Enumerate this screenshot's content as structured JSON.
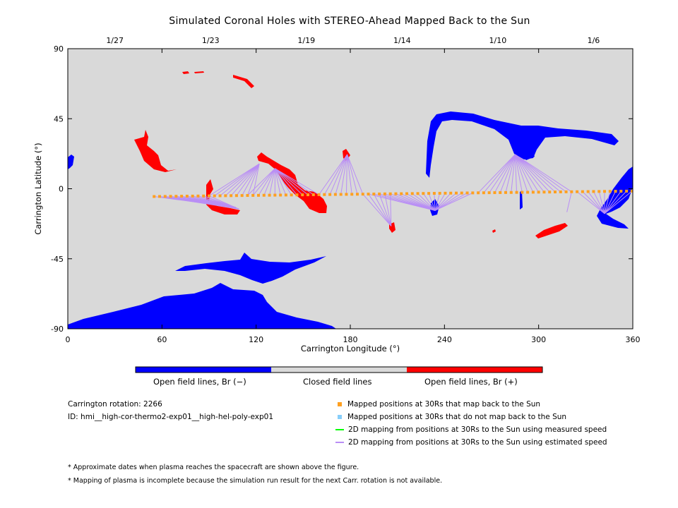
{
  "title": "Simulated Coronal Holes with STEREO-Ahead Mapped Back to the Sun",
  "chart_data": {
    "type": "map",
    "title": "Simulated Coronal Holes with STEREO-Ahead Mapped Back to the Sun",
    "xlabel": "Carrington Longitude (°)",
    "ylabel": "Carrington Latitude (°)",
    "xlim": [
      0,
      360
    ],
    "ylim": [
      -90,
      90
    ],
    "xticks": [
      0,
      60,
      120,
      180,
      240,
      300,
      360
    ],
    "yticks": [
      90,
      45,
      0,
      -45,
      -90
    ],
    "top_axis": {
      "tick_labels": [
        "1/27",
        "1/23",
        "1/19",
        "1/14",
        "1/10",
        "1/6"
      ],
      "tick_longitudes": [
        30,
        91,
        152,
        213,
        274,
        335
      ]
    },
    "colors": {
      "background": "#d9d9d9",
      "negative": "#0000ff",
      "positive": "#ff0000",
      "mapped": "#ffa020",
      "estimated": "#b98ef5",
      "measured": "#00ff00",
      "unmapped": "#87cefa"
    },
    "mapped_points": {
      "lon_start": 55,
      "lon_end": 360,
      "step": 3.5,
      "lat_start": -5,
      "lat_end": -1.5
    },
    "footpoints": [
      {
        "lon": 107,
        "lat": -12,
        "from": [
          55,
          88
        ]
      },
      {
        "lon": 109,
        "lat": -13,
        "from": [
          58,
          91
        ]
      },
      {
        "lon": 122,
        "lat": 16,
        "from": [
          88,
          118
        ]
      },
      {
        "lon": 132,
        "lat": 13,
        "from": [
          112,
          160
        ]
      },
      {
        "lon": 178,
        "lat": 22,
        "from": [
          160,
          190
        ]
      },
      {
        "lon": 206,
        "lat": -24,
        "from": [
          188,
          206
        ]
      },
      {
        "lon": 234,
        "lat": -14,
        "from": [
          190,
          260
        ]
      },
      {
        "lon": 285,
        "lat": 22,
        "from": [
          260,
          322
        ]
      },
      {
        "lon": 318,
        "lat": -15,
        "from": [
          318,
          322
        ]
      },
      {
        "lon": 342,
        "lat": -16,
        "from": [
          322,
          360
        ]
      }
    ],
    "colorbar": [
      "Open field lines, Br (−)",
      "Closed field lines",
      "Open field lines, Br (+)"
    ]
  },
  "info": {
    "rotation": "Carrington rotation: 2266",
    "id": "ID: hmi__high-cor-thermo2-exp01__high-hel-poly-exp01"
  },
  "legend": [
    {
      "label": "Mapped positions at 30Rs that map back to the Sun",
      "kind": "square",
      "color": "#ffa020"
    },
    {
      "label": "Mapped positions at 30Rs that do not map back to the Sun",
      "kind": "square",
      "color": "#87cefa"
    },
    {
      "label": "2D mapping from positions at 30Rs to the Sun using measured speed",
      "kind": "line",
      "color": "#00ff00"
    },
    {
      "label": "2D mapping from positions at 30Rs to the Sun using estimated speed",
      "kind": "line",
      "color": "#b98ef5"
    }
  ],
  "notes": [
    "* Approximate dates when plasma reaches the spacecraft are shown above the figure.",
    "* Mapping of plasma is incomplete because the simulation run result for the next Carr. rotation is not available."
  ]
}
